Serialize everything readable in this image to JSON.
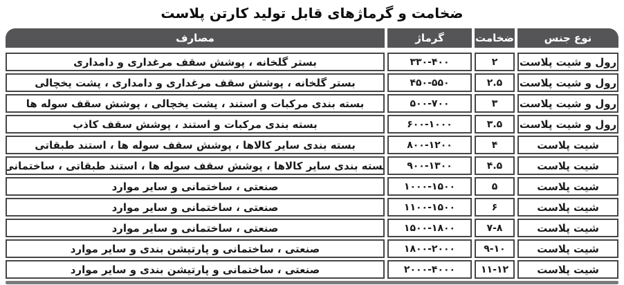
{
  "title": "ضخامت و گرماژهای قابل تولید کارتن پلاست",
  "table": {
    "headers": {
      "material": "نوع جنس",
      "thickness": "ضخامت",
      "grammage": "گرماژ",
      "uses": "مصارف"
    },
    "rows": [
      {
        "material": "رول و شیت پلاست",
        "thickness": "۲",
        "grammage": "۳۳۰-۴۰۰",
        "uses": "بستر گلخانه ، پوشش سقف مرغداری و دامداری"
      },
      {
        "material": "رول و شیت پلاست",
        "thickness": "۲.۵",
        "grammage": "۴۵۰-۵۵۰",
        "uses": "بستر گلخانه ، پوشش سقف مرغداری و دامداری ، پشت یخچالی"
      },
      {
        "material": "رول و شیت پلاست",
        "thickness": "۳",
        "grammage": "۵۰۰-۷۰۰",
        "uses": "بسته بندی مرکبات و استند ، پشت یخچالی ، پوشش سقف سوله ها"
      },
      {
        "material": "رول و شیت پلاست",
        "thickness": "۳.۵",
        "grammage": "۶۰۰-۱۰۰۰",
        "uses": "بسته بندی مرکبات و استند ، پوشش سقف کاذب"
      },
      {
        "material": "شیت پلاست",
        "thickness": "۴",
        "grammage": "۸۰۰-۱۲۰۰",
        "uses": "بسته بندی سایر کالاها ، پوشش سقف سوله ها ، استند طبقاتی"
      },
      {
        "material": "شیت پلاست",
        "thickness": "۴.۵",
        "grammage": "۹۰۰-۱۳۰۰",
        "uses": "بسته بندی سایر کالاها ، پوشش سقف سوله ها ، استند طبقاتی ، ساختمانی"
      },
      {
        "material": "شیت پلاست",
        "thickness": "۵",
        "grammage": "۱۰۰۰-۱۵۰۰",
        "uses": "صنعتی ، ساختمانی و سایر موارد"
      },
      {
        "material": "شیت پلاست",
        "thickness": "۶",
        "grammage": "۱۱۰۰-۱۵۰۰",
        "uses": "صنعتی ، ساختمانی و سایر موارد"
      },
      {
        "material": "شیت پلاست",
        "thickness": "۷-۸",
        "grammage": "۱۵۰۰-۱۸۰۰",
        "uses": "صنعتی ، ساختمانی و سایر موارد"
      },
      {
        "material": "شیت پلاست",
        "thickness": "۹-۱۰",
        "grammage": "۱۸۰۰-۲۰۰۰",
        "uses": "صنعتی ، ساختمانی و پارتیشن بندی و سایر موارد"
      },
      {
        "material": "شیت پلاست",
        "thickness": "۱۱-۱۲",
        "grammage": "۲۰۰۰-۴۰۰۰",
        "uses": "صنعتی ، ساختمانی و پارتیشن بندی و سایر موارد"
      }
    ]
  },
  "colors": {
    "header_bg": "#555557",
    "header_text": "#ffffff",
    "border": "#454547",
    "text": "#1a1a1a",
    "bottom_bar": "#7b7b7d"
  }
}
